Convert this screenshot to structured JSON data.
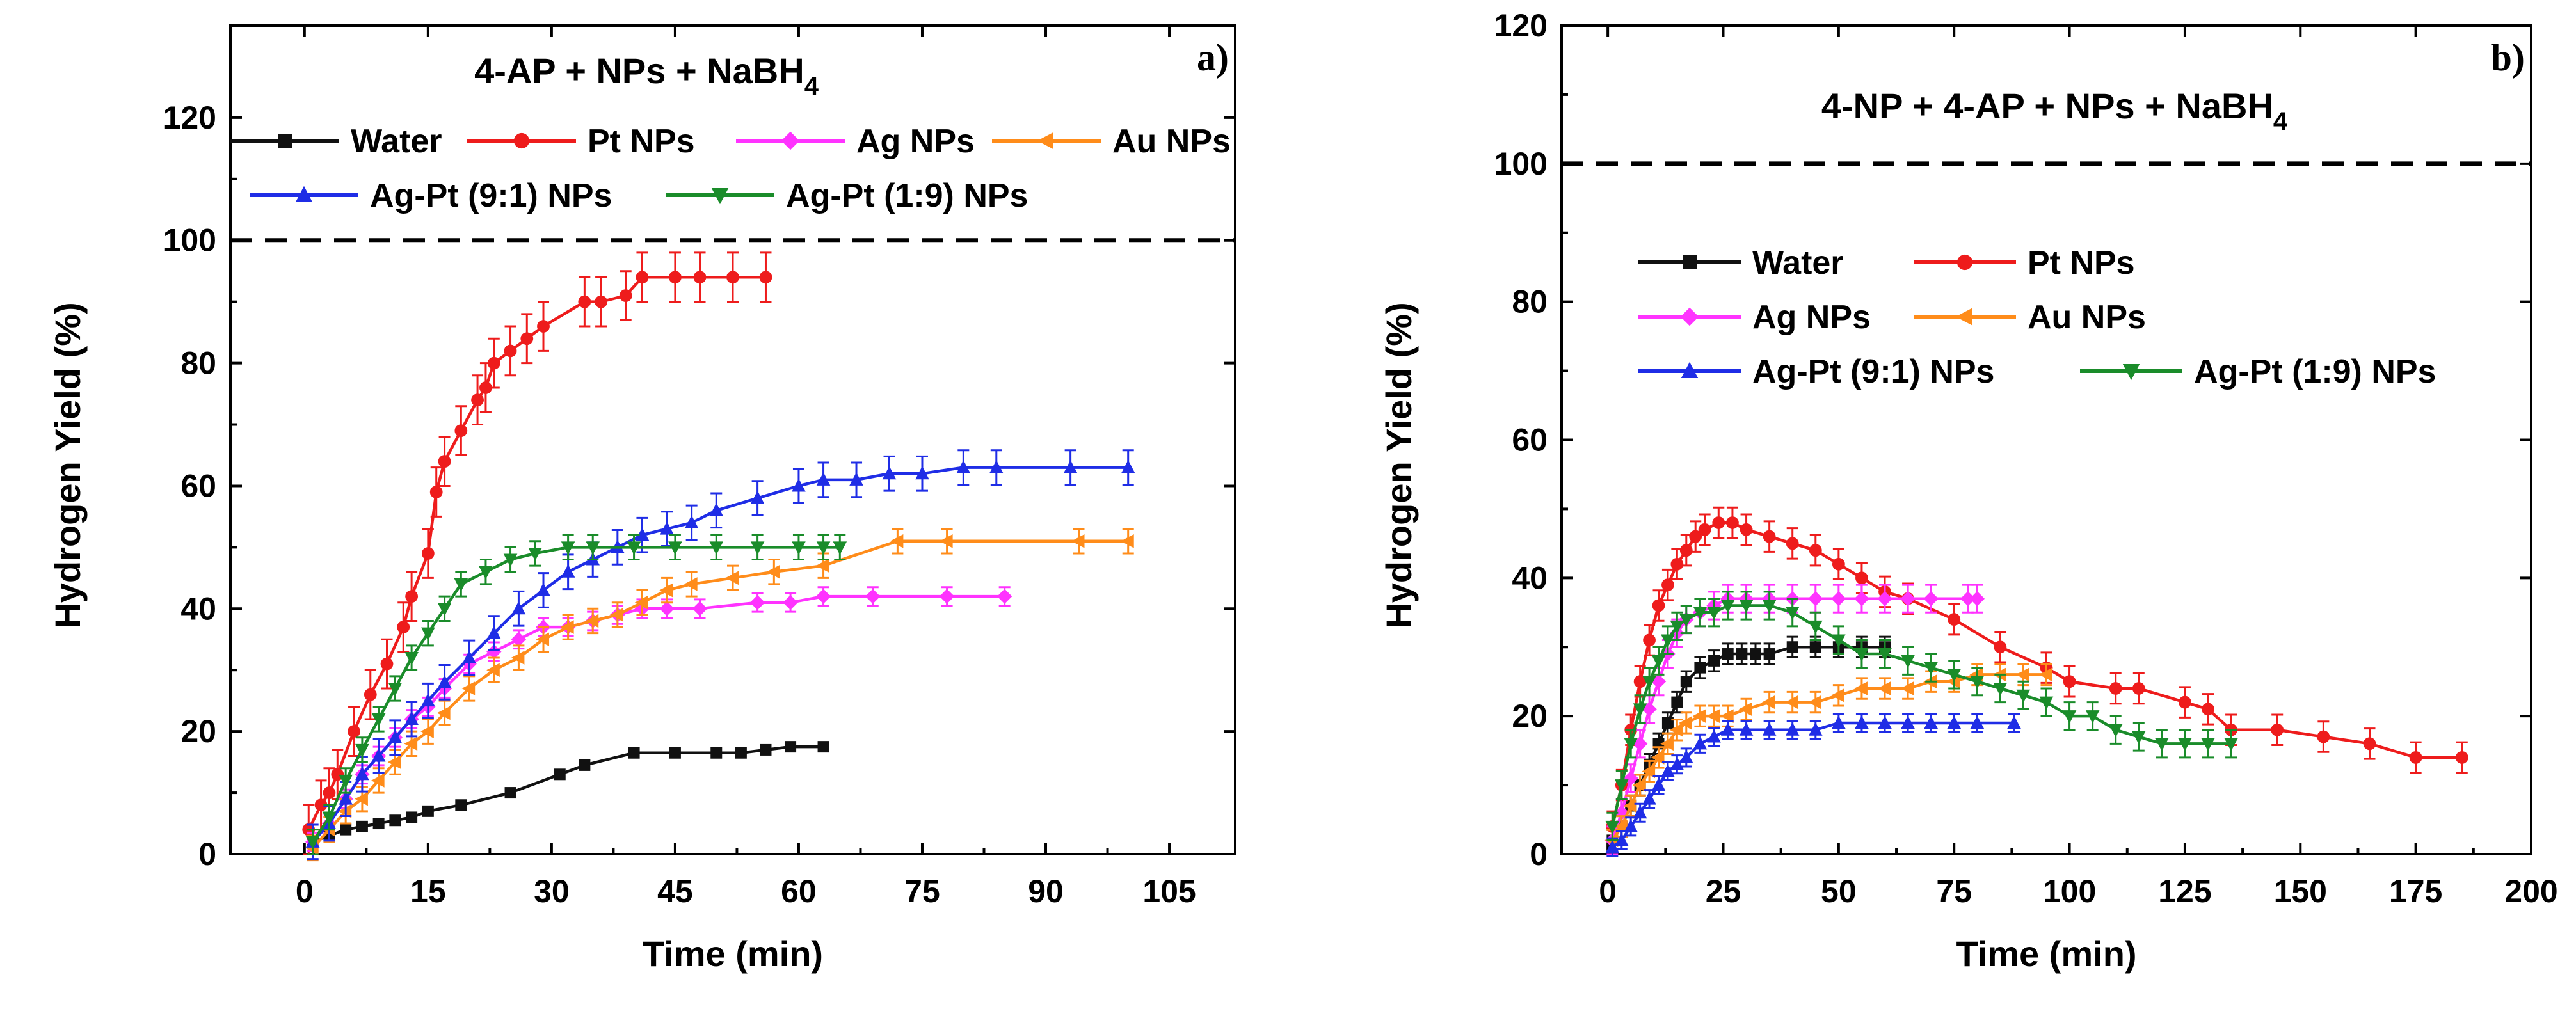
{
  "chart_data": [
    {
      "type": "line",
      "panel_label": "a)",
      "title": "4-AP + NPs + NaBH",
      "title_subscript": "4",
      "xlabel": "Time (min)",
      "ylabel": "Hydrogen Yield (%)",
      "xlim": [
        -9,
        113
      ],
      "ylim": [
        0,
        135
      ],
      "xticks": [
        0,
        15,
        30,
        45,
        60,
        75,
        90,
        105
      ],
      "yticks": [
        0,
        20,
        40,
        60,
        80,
        100,
        120
      ],
      "reference_line": 100,
      "legend_position": "top",
      "series": [
        {
          "name": "Water",
          "color": "#111111",
          "marker": "square",
          "error": 0.8,
          "x": [
            1,
            3,
            5,
            7,
            9,
            11,
            13,
            15,
            19,
            25,
            31,
            34,
            40,
            45,
            50,
            53,
            56,
            59,
            63
          ],
          "y": [
            2,
            3,
            4,
            4.5,
            5,
            5.5,
            6,
            7,
            8,
            10,
            13,
            14.5,
            16.5,
            16.5,
            16.5,
            16.5,
            17,
            17.5,
            17.5
          ]
        },
        {
          "name": "Pt NPs",
          "color": "#ee1c1c",
          "marker": "circle",
          "error": 4,
          "x": [
            0.5,
            2,
            3,
            4,
            6,
            8,
            10,
            12,
            13,
            15,
            16,
            17,
            19,
            21,
            22,
            23,
            25,
            27,
            29,
            34,
            36,
            39,
            41,
            45,
            48,
            52,
            56
          ],
          "y": [
            4,
            8,
            10,
            13,
            20,
            26,
            31,
            37,
            42,
            49,
            59,
            64,
            69,
            74,
            76,
            80,
            82,
            84,
            86,
            90,
            90,
            91,
            94,
            94,
            94,
            94,
            94
          ]
        },
        {
          "name": "Ag NPs",
          "color": "#ff33ff",
          "marker": "diamond",
          "error": 1.5,
          "x": [
            1,
            3,
            5,
            7,
            9,
            11,
            13,
            15,
            17,
            20,
            23,
            26,
            29,
            32,
            35,
            38,
            41,
            44,
            48,
            55,
            59,
            63,
            69,
            78,
            85
          ],
          "y": [
            2,
            5,
            9,
            13,
            16,
            19,
            22,
            24,
            27,
            31,
            33,
            35,
            37,
            37,
            38,
            39,
            40,
            40,
            40,
            41,
            41,
            42,
            42,
            42,
            42
          ]
        },
        {
          "name": "Au NPs",
          "color": "#ff8c1a",
          "marker": "triangle-left",
          "error": 2,
          "x": [
            1,
            3,
            5,
            7,
            9,
            11,
            13,
            15,
            17,
            20,
            23,
            26,
            29,
            32,
            35,
            38,
            41,
            44,
            47,
            52,
            57,
            63,
            72,
            78,
            94,
            100
          ],
          "y": [
            1,
            4,
            7,
            9,
            12,
            15,
            18,
            20,
            23,
            27,
            30,
            32,
            35,
            37,
            38,
            39,
            41,
            43,
            44,
            45,
            46,
            47,
            51,
            51,
            51,
            51
          ]
        },
        {
          "name": "Ag-Pt (9:1) NPs",
          "color": "#1f2de6",
          "marker": "triangle-up",
          "error": 2.8,
          "x": [
            1,
            3,
            5,
            7,
            9,
            11,
            13,
            15,
            17,
            20,
            23,
            26,
            29,
            32,
            35,
            38,
            41,
            44,
            47,
            50,
            55,
            60,
            63,
            67,
            71,
            75,
            80,
            84,
            93,
            100
          ],
          "y": [
            2,
            5,
            9,
            13,
            16,
            19,
            22,
            25,
            28,
            32,
            36,
            40,
            43,
            46,
            48,
            50,
            52,
            53,
            54,
            56,
            58,
            60,
            61,
            61,
            62,
            62,
            63,
            63,
            63,
            63
          ]
        },
        {
          "name": "Ag-Pt (1:9) NPs",
          "color": "#1a8c2a",
          "marker": "triangle-down",
          "error": 2,
          "x": [
            1,
            3,
            5,
            7,
            9,
            11,
            13,
            15,
            17,
            19,
            22,
            25,
            28,
            32,
            35,
            40,
            45,
            50,
            55,
            60,
            63,
            65
          ],
          "y": [
            2,
            6,
            12,
            17,
            22,
            27,
            32,
            36,
            40,
            44,
            46,
            48,
            49,
            50,
            50,
            50,
            50,
            50,
            50,
            50,
            50,
            50
          ]
        }
      ]
    },
    {
      "type": "line",
      "panel_label": "b)",
      "title": "4-NP + 4-AP + NPs + NaBH",
      "title_subscript": "4",
      "xlabel": "Time (min)",
      "ylabel": "Hydrogen Yield (%)",
      "xlim": [
        -10,
        200
      ],
      "ylim": [
        0,
        120
      ],
      "xticks": [
        0,
        25,
        50,
        75,
        100,
        125,
        150,
        175,
        200
      ],
      "yticks": [
        0,
        20,
        40,
        60,
        80,
        100,
        120
      ],
      "reference_line": 100,
      "legend_position": "center-left",
      "series": [
        {
          "name": "Water",
          "color": "#111111",
          "marker": "square",
          "error": 1.5,
          "x": [
            1,
            3,
            5,
            7,
            9,
            11,
            13,
            15,
            17,
            20,
            23,
            26,
            29,
            32,
            35,
            40,
            45,
            50,
            55,
            60
          ],
          "y": [
            2,
            4,
            7,
            10,
            13,
            16,
            19,
            22,
            25,
            27,
            28,
            29,
            29,
            29,
            29,
            30,
            30,
            30,
            30,
            30
          ]
        },
        {
          "name": "Pt NPs",
          "color": "#ee1c1c",
          "marker": "circle",
          "error": 2.2,
          "x": [
            1,
            3,
            5,
            7,
            9,
            11,
            13,
            15,
            17,
            19,
            21,
            24,
            27,
            30,
            35,
            40,
            45,
            50,
            55,
            60,
            65,
            75,
            85,
            95,
            100,
            110,
            115,
            125,
            130,
            135,
            145,
            155,
            165,
            175,
            185
          ],
          "y": [
            4,
            10,
            18,
            25,
            31,
            36,
            39,
            42,
            44,
            46,
            47,
            48,
            48,
            47,
            46,
            45,
            44,
            42,
            40,
            38,
            37,
            34,
            30,
            27,
            25,
            24,
            24,
            22,
            21,
            18,
            18,
            17,
            16,
            14,
            14
          ]
        },
        {
          "name": "Ag NPs",
          "color": "#ff33ff",
          "marker": "diamond",
          "error": 2,
          "x": [
            1,
            3,
            5,
            7,
            9,
            11,
            13,
            15,
            17,
            20,
            23,
            26,
            30,
            35,
            40,
            45,
            50,
            55,
            60,
            65,
            70,
            78,
            80
          ],
          "y": [
            2,
            6,
            11,
            16,
            21,
            25,
            29,
            32,
            34,
            35,
            36,
            37,
            37,
            37,
            37,
            37,
            37,
            37,
            37,
            37,
            37,
            37,
            37
          ]
        },
        {
          "name": "Au NPs",
          "color": "#ff8c1a",
          "marker": "triangle-left",
          "error": 1.5,
          "x": [
            1,
            3,
            5,
            7,
            9,
            11,
            13,
            15,
            17,
            20,
            23,
            26,
            30,
            35,
            40,
            45,
            50,
            55,
            60,
            65,
            70,
            75,
            80,
            85,
            90,
            95
          ],
          "y": [
            2,
            4,
            7,
            10,
            12,
            14,
            16,
            18,
            19,
            20,
            20,
            20,
            21,
            22,
            22,
            22,
            23,
            24,
            24,
            24,
            25,
            25,
            26,
            26,
            26,
            26
          ]
        },
        {
          "name": "Ag-Pt (9:1) NPs",
          "color": "#1f2de6",
          "marker": "triangle-up",
          "error": 1.3,
          "x": [
            1,
            3,
            5,
            7,
            9,
            11,
            13,
            15,
            17,
            20,
            23,
            26,
            30,
            35,
            40,
            45,
            50,
            55,
            60,
            65,
            70,
            75,
            80,
            88
          ],
          "y": [
            1,
            2,
            4,
            6,
            8,
            10,
            12,
            13,
            14,
            16,
            17,
            18,
            18,
            18,
            18,
            18,
            19,
            19,
            19,
            19,
            19,
            19,
            19,
            19
          ]
        },
        {
          "name": "Ag-Pt (1:9) NPs",
          "color": "#1a8c2a",
          "marker": "triangle-down",
          "error": 2,
          "x": [
            1,
            3,
            5,
            7,
            9,
            11,
            13,
            15,
            17,
            20,
            23,
            26,
            30,
            35,
            40,
            45,
            50,
            55,
            60,
            65,
            70,
            75,
            80,
            85,
            90,
            95,
            100,
            105,
            110,
            115,
            120,
            125,
            130,
            135
          ],
          "y": [
            4,
            10,
            16,
            21,
            25,
            28,
            31,
            33,
            34,
            35,
            35,
            36,
            36,
            36,
            35,
            33,
            31,
            29,
            29,
            28,
            27,
            26,
            25,
            24,
            23,
            22,
            20,
            20,
            18,
            17,
            16,
            16,
            16,
            16
          ]
        }
      ]
    }
  ]
}
